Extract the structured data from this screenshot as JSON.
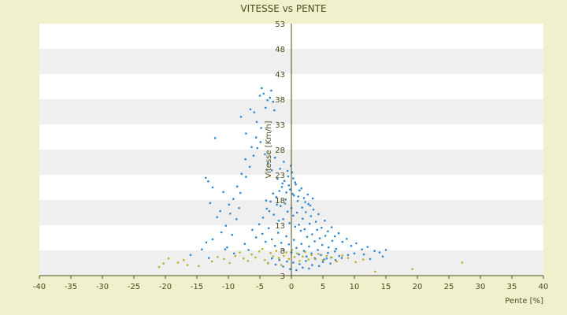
{
  "chart_data": {
    "type": "scatter",
    "title": "VITESSE vs PENTE",
    "xlabel": "Pente [%]",
    "ylabel": "Vitesse [Km/h]",
    "xlim": [
      -40,
      40
    ],
    "ylim": [
      3,
      53
    ],
    "xticks": [
      "-40",
      "-35",
      "-30",
      "-25",
      "-20",
      "-15",
      "-10",
      "-5",
      "0",
      "5",
      "10",
      "15",
      "20",
      "25",
      "30",
      "35",
      "40"
    ],
    "yticks": [
      "3",
      "8",
      "13",
      "18",
      "23",
      "28",
      "33",
      "38",
      "43",
      "48",
      "53"
    ],
    "grid": "horizontal alternating bands",
    "colors": {
      "background": "#eef1cc",
      "plot_band_light": "#ffffff",
      "plot_band_dark": "#efefef",
      "axis": "#4d4d1f",
      "series_main": "#2f86d2",
      "series_low": "#b7b421"
    },
    "series": [
      {
        "points": [
          [
            -12.1,
            30.3
          ],
          [
            -8,
            34.5
          ],
          [
            -7.2,
            31.2
          ],
          [
            -6.5,
            36
          ],
          [
            -5.9,
            35.4
          ],
          [
            -5.5,
            33.5
          ],
          [
            -5,
            38.7
          ],
          [
            -4.7,
            40.2
          ],
          [
            -4.4,
            39.1
          ],
          [
            -4.1,
            36.3
          ],
          [
            -3.8,
            37.8
          ],
          [
            -3.4,
            38.3
          ],
          [
            -3.2,
            39.7
          ],
          [
            -2.9,
            37.5
          ],
          [
            -2.7,
            35.8
          ],
          [
            -4.8,
            32.3
          ],
          [
            -5.6,
            30.4
          ],
          [
            -6.3,
            28.5
          ],
          [
            -7.3,
            26.1
          ],
          [
            -7.9,
            23.2
          ],
          [
            -8.6,
            20.7
          ],
          [
            -9.2,
            18.2
          ],
          [
            -9.7,
            15.3
          ],
          [
            -10.4,
            12.9
          ],
          [
            -11.1,
            11.6
          ],
          [
            -12.5,
            20.5
          ],
          [
            -13.2,
            21.7
          ],
          [
            -13.6,
            22.4
          ],
          [
            -12.9,
            17.4
          ],
          [
            -11.8,
            14.6
          ],
          [
            -13.5,
            9.6
          ],
          [
            -12.5,
            10.2
          ],
          [
            -10.5,
            8.2
          ],
          [
            -9.4,
            11.1
          ],
          [
            -8.7,
            14.2
          ],
          [
            -8.1,
            19.4
          ],
          [
            -7.2,
            22.6
          ],
          [
            -6.6,
            24.6
          ],
          [
            -6,
            26.8
          ],
          [
            -5.4,
            28.3
          ],
          [
            -4.9,
            29.5
          ],
          [
            -4.2,
            27.1
          ],
          [
            -3.7,
            25.3
          ],
          [
            -3.1,
            23.9
          ],
          [
            -2.6,
            26.4
          ],
          [
            -2.2,
            22.2
          ],
          [
            -1.8,
            24.2
          ],
          [
            -1.5,
            20.6
          ],
          [
            -1.1,
            21.8
          ],
          [
            -0.8,
            19.5
          ],
          [
            -0.5,
            22.7
          ],
          [
            -0.2,
            20.1
          ],
          [
            0.1,
            23.5
          ],
          [
            0.4,
            18.9
          ],
          [
            0.7,
            21.1
          ],
          [
            1,
            17.8
          ],
          [
            1.3,
            19.9
          ],
          [
            1.7,
            16.5
          ],
          [
            2,
            18.4
          ],
          [
            2.3,
            15.6
          ],
          [
            2.7,
            17.2
          ],
          [
            3.1,
            14.8
          ],
          [
            3.5,
            16.1
          ],
          [
            3.9,
            13.7
          ],
          [
            4.3,
            15.2
          ],
          [
            4.8,
            12.5
          ],
          [
            5.3,
            13.9
          ],
          [
            5.8,
            11.8
          ],
          [
            6.4,
            12.6
          ],
          [
            6.9,
            10.8
          ],
          [
            7.5,
            11.4
          ],
          [
            8.1,
            9.7
          ],
          [
            8.8,
            10.3
          ],
          [
            9.5,
            8.9
          ],
          [
            10.3,
            9.4
          ],
          [
            11.2,
            8.2
          ],
          [
            12.1,
            8.7
          ],
          [
            13.2,
            7.9
          ],
          [
            14.5,
            6.8
          ],
          [
            15,
            8.1
          ],
          [
            -4.5,
            14.5
          ],
          [
            -3.9,
            16.3
          ],
          [
            -3.3,
            17.7
          ],
          [
            -2.8,
            15.1
          ],
          [
            -2.4,
            18.6
          ],
          [
            -2,
            13.9
          ],
          [
            -1.7,
            16.8
          ],
          [
            -1.3,
            14.2
          ],
          [
            -1,
            17.3
          ],
          [
            -0.6,
            15.7
          ],
          [
            -0.3,
            13.4
          ],
          [
            0,
            16.4
          ],
          [
            0.3,
            14.9
          ],
          [
            0.6,
            12.7
          ],
          [
            0.9,
            15.5
          ],
          [
            1.2,
            13.1
          ],
          [
            1.5,
            11.9
          ],
          [
            1.8,
            14.3
          ],
          [
            2.1,
            12.2
          ],
          [
            2.5,
            10.7
          ],
          [
            2.9,
            13.3
          ],
          [
            3.3,
            11.2
          ],
          [
            3.7,
            9.8
          ],
          [
            4.1,
            12.1
          ],
          [
            4.5,
            10.4
          ],
          [
            4.9,
            9.1
          ],
          [
            5.4,
            10.9
          ],
          [
            5.9,
            8.6
          ],
          [
            6.5,
            9.9
          ],
          [
            7.1,
            8.3
          ],
          [
            -6.2,
            12.1
          ],
          [
            -5.6,
            10.6
          ],
          [
            -5.1,
            13.2
          ],
          [
            -4.6,
            11.3
          ],
          [
            -4.1,
            9.7
          ],
          [
            -3.6,
            12.4
          ],
          [
            -3.1,
            10.2
          ],
          [
            -2.6,
            8.9
          ],
          [
            -2.1,
            11.5
          ],
          [
            -1.6,
            9.5
          ],
          [
            -1.2,
            8.1
          ],
          [
            -0.8,
            10.8
          ],
          [
            -0.4,
            9.2
          ],
          [
            0,
            7.6
          ],
          [
            0.4,
            10.1
          ],
          [
            0.8,
            8.5
          ],
          [
            1.2,
            7.2
          ],
          [
            1.6,
            9.3
          ],
          [
            2,
            7.9
          ],
          [
            2.4,
            6.8
          ],
          [
            2.8,
            8.8
          ],
          [
            3.2,
            7.4
          ],
          [
            3.7,
            6.5
          ],
          [
            4.2,
            8.1
          ],
          [
            4.7,
            7.1
          ],
          [
            5.2,
            6.2
          ],
          [
            5.8,
            7.5
          ],
          [
            6.3,
            6.6
          ],
          [
            6.9,
            7.8
          ],
          [
            7.6,
            6.9
          ],
          [
            -1.9,
            19.8
          ],
          [
            -1.4,
            21.3
          ],
          [
            -0.9,
            18.1
          ],
          [
            -0.4,
            20.9
          ],
          [
            0.2,
            19.2
          ],
          [
            0.6,
            21.5
          ],
          [
            1.1,
            18.7
          ],
          [
            1.6,
            20.3
          ],
          [
            2.2,
            17.6
          ],
          [
            2.6,
            19.1
          ],
          [
            3,
            16.9
          ],
          [
            3.4,
            18.3
          ],
          [
            -2.3,
            17.1
          ],
          [
            -2.9,
            19.3
          ],
          [
            -3.5,
            15.8
          ],
          [
            -4,
            17.9
          ],
          [
            -0.1,
            24.8
          ],
          [
            0.3,
            22.3
          ],
          [
            -0.6,
            23.8
          ],
          [
            -1.2,
            25.6
          ],
          [
            -0.7,
            5.8
          ],
          [
            -0.2,
            4.3
          ],
          [
            0.3,
            5.6
          ],
          [
            0.8,
            4.1
          ],
          [
            1.3,
            5.3
          ],
          [
            1.8,
            4.6
          ],
          [
            2.3,
            5.9
          ],
          [
            2.8,
            4.4
          ],
          [
            -1.3,
            4.8
          ],
          [
            -1.9,
            6.1
          ],
          [
            -2.5,
            5.2
          ],
          [
            -3.1,
            6.4
          ],
          [
            -3.7,
            5.5
          ],
          [
            3.3,
            5.1
          ],
          [
            3.8,
            6.3
          ],
          [
            4.4,
            4.9
          ],
          [
            5,
            5.7
          ],
          [
            5.6,
            6.4
          ],
          [
            6.2,
            5.4
          ],
          [
            7,
            6.1
          ],
          [
            8,
            6.5
          ],
          [
            9,
            7.1
          ],
          [
            10,
            7.4
          ],
          [
            11.5,
            7.2
          ],
          [
            12.5,
            6.3
          ],
          [
            14,
            7.6
          ],
          [
            -16,
            7.1
          ],
          [
            -14.2,
            8.2
          ],
          [
            -13.1,
            6.5
          ],
          [
            -10.2,
            8.6
          ],
          [
            -9.1,
            7.4
          ],
          [
            -7.4,
            9.3
          ],
          [
            -6.8,
            8.1
          ],
          [
            -8.3,
            16.4
          ],
          [
            -9.9,
            17.1
          ],
          [
            -10.8,
            19.6
          ],
          [
            -11.3,
            15.8
          ]
        ]
      },
      {
        "points": [
          [
            -21,
            4.7
          ],
          [
            -20.3,
            5.4
          ],
          [
            -19.5,
            6.4
          ],
          [
            -18,
            5.6
          ],
          [
            -17.1,
            6.1
          ],
          [
            -16.5,
            5.1
          ],
          [
            -14.7,
            4.9
          ],
          [
            -12.6,
            5.8
          ],
          [
            -11.7,
            6.7
          ],
          [
            -10.7,
            6.3
          ],
          [
            -9.8,
            5.5
          ],
          [
            -8.9,
            6.9
          ],
          [
            -8.2,
            7.6
          ],
          [
            -7.6,
            6.4
          ],
          [
            -6.9,
            5.9
          ],
          [
            -6.3,
            7.2
          ],
          [
            -5.7,
            6.6
          ],
          [
            -5.1,
            7.8
          ],
          [
            -4.6,
            8.3
          ],
          [
            -4.2,
            6.1
          ],
          [
            -3.7,
            5.4
          ],
          [
            -3.3,
            7.5
          ],
          [
            -2.9,
            6.8
          ],
          [
            -2.4,
            7.9
          ],
          [
            -2,
            6.5
          ],
          [
            -1.6,
            5.1
          ],
          [
            -1.2,
            6.9
          ],
          [
            -0.8,
            7.6
          ],
          [
            -0.4,
            6.3
          ],
          [
            0.1,
            8.1
          ],
          [
            0.5,
            6.7
          ],
          [
            0.9,
            7.4
          ],
          [
            1.3,
            5.9
          ],
          [
            1.8,
            6.8
          ],
          [
            2.2,
            7.7
          ],
          [
            2.7,
            6.2
          ],
          [
            3.2,
            7.1
          ],
          [
            3.7,
            6.4
          ],
          [
            4.3,
            7.3
          ],
          [
            5,
            6.1
          ],
          [
            5.6,
            6.9
          ],
          [
            6.4,
            6.6
          ],
          [
            7.2,
            5.8
          ],
          [
            8.1,
            7
          ],
          [
            9,
            6.5
          ],
          [
            10.2,
            5.7
          ],
          [
            11.4,
            6.2
          ],
          [
            13.3,
            3.8
          ],
          [
            19.2,
            4.3
          ],
          [
            27.1,
            5.6
          ]
        ]
      }
    ]
  }
}
